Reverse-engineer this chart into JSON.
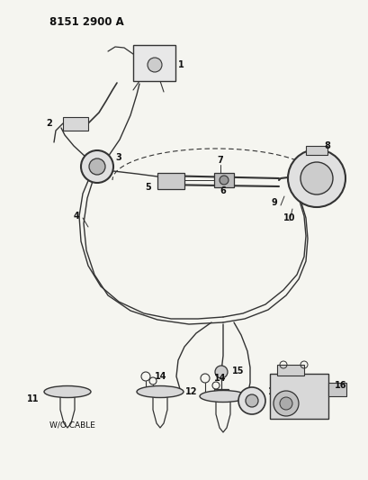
{
  "title": "8151 2900 A",
  "bg_color": "#f5f5f0",
  "line_color": "#333333",
  "text_color": "#111111",
  "title_fontsize": 8.5,
  "label_fontsize": 7,
  "fig_width": 4.1,
  "fig_height": 5.33,
  "dpi": 100,
  "wo_cable_text": "W/O CABLE",
  "xlim": [
    0,
    410
  ],
  "ylim": [
    0,
    533
  ]
}
